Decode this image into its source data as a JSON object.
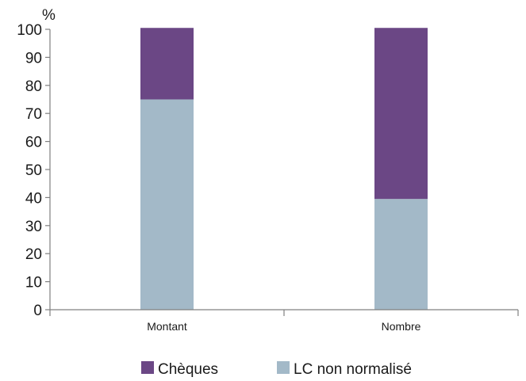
{
  "chart_data": {
    "type": "bar",
    "stacked": true,
    "ylabel": "%",
    "ylim": [
      0,
      100
    ],
    "yticks": [
      0,
      10,
      20,
      30,
      40,
      50,
      60,
      70,
      80,
      90,
      100
    ],
    "categories": [
      "Montant",
      "Nombre"
    ],
    "series": [
      {
        "name": "LC non normalisé",
        "values": [
          75,
          39.5
        ],
        "color": "#a3b9c8"
      },
      {
        "name": "Chèques",
        "values": [
          25.5,
          61
        ],
        "color": "#6b4785"
      }
    ],
    "legend": {
      "placement": "bottom",
      "order": [
        "Chèques",
        "LC non normalisé"
      ]
    },
    "grid": false
  }
}
